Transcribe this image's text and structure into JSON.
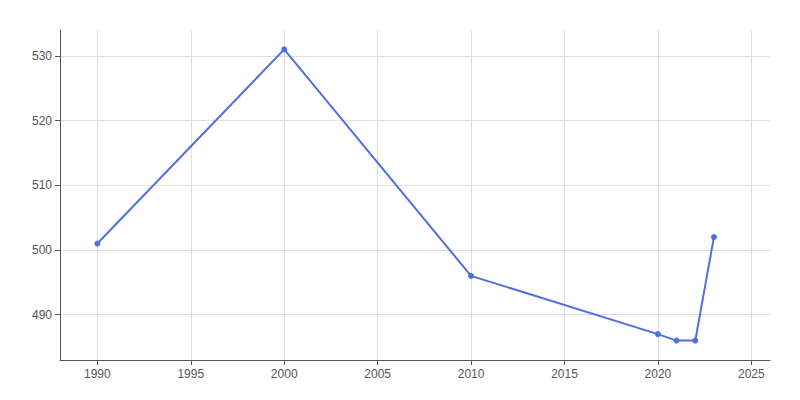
{
  "chart_data": {
    "type": "line",
    "x": [
      1990,
      2000,
      2010,
      2020,
      2021,
      2022,
      2023
    ],
    "values": [
      501,
      531,
      496,
      487,
      486,
      486,
      502
    ],
    "xlim": [
      1988,
      2026
    ],
    "ylim": [
      483,
      534
    ],
    "xticks": [
      1990,
      1995,
      2000,
      2005,
      2010,
      2015,
      2020,
      2025
    ],
    "yticks": [
      490,
      500,
      510,
      520,
      530
    ],
    "grid": true,
    "marker": "circle"
  }
}
